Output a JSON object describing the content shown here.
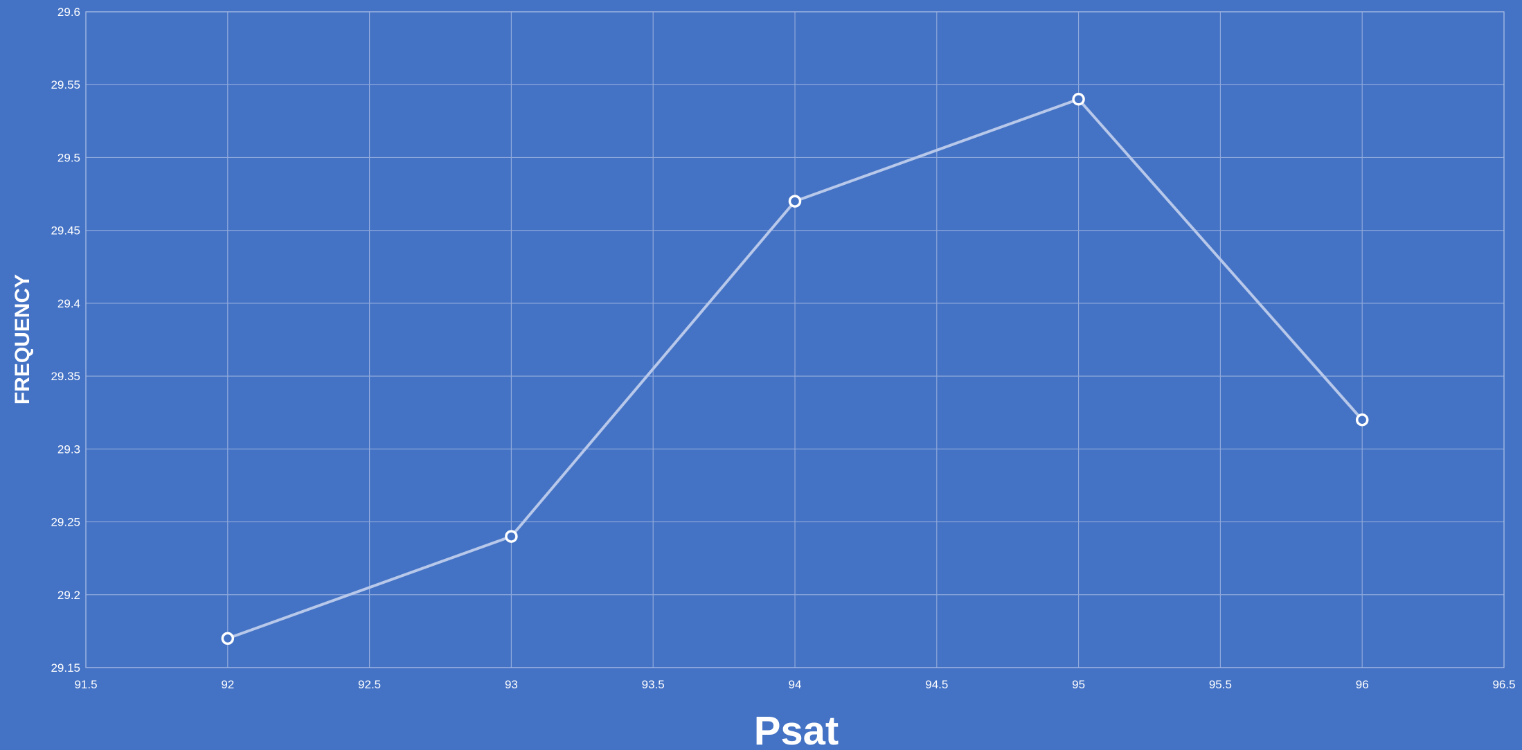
{
  "chart_data": {
    "type": "line",
    "xlabel": "Psat",
    "ylabel": "FREQUENCY",
    "xlim": [
      91.5,
      96.5
    ],
    "ylim": [
      29.15,
      29.6
    ],
    "x_ticks": [
      "91.5",
      "92",
      "92.5",
      "93",
      "93.5",
      "94",
      "94.5",
      "95",
      "95.5",
      "96",
      "96.5"
    ],
    "y_ticks": [
      "29.15",
      "29.2",
      "29.25",
      "29.3",
      "29.35",
      "29.4",
      "29.45",
      "29.5",
      "29.55",
      "29.6"
    ],
    "grid": true,
    "legend": "none",
    "series": [
      {
        "x": [
          92,
          93,
          94,
          95,
          96
        ],
        "y": [
          29.17,
          29.24,
          29.47,
          29.54,
          29.32
        ],
        "marker": "hollow-circle"
      }
    ]
  },
  "colors": {
    "background": "#4472c4",
    "line": "#b7c8ea",
    "marker_stroke": "#ffffff",
    "gridline": "#8fa9dc",
    "text": "#ffffff"
  }
}
